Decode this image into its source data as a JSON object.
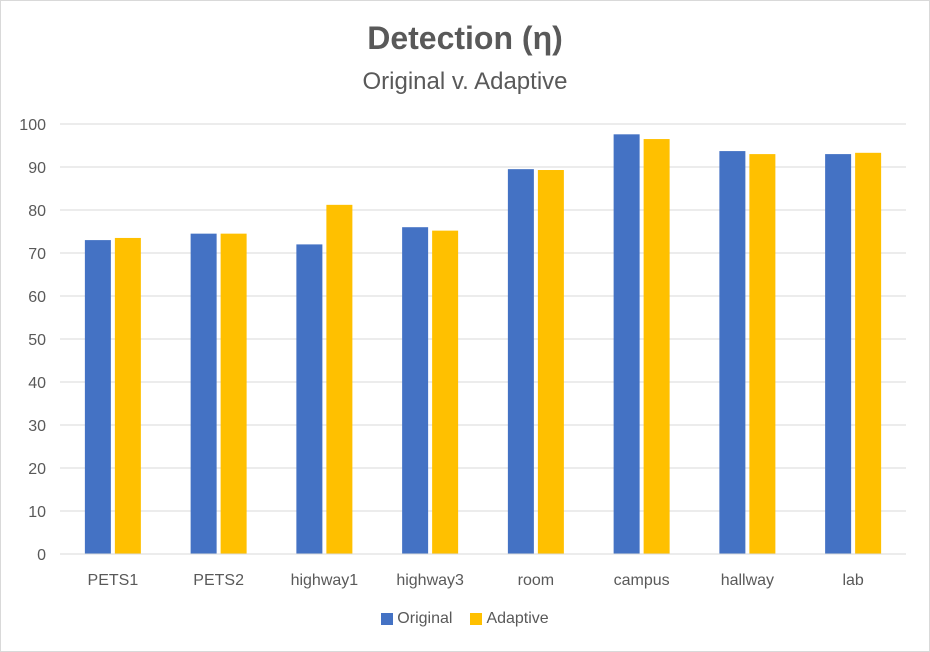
{
  "chart_data": {
    "type": "bar",
    "title": "Detection (η)",
    "subtitle": "Original v. Adaptive",
    "xlabel": "",
    "ylabel": "",
    "ylim": [
      0,
      100
    ],
    "yticks": [
      0,
      10,
      20,
      30,
      40,
      50,
      60,
      70,
      80,
      90,
      100
    ],
    "grid": true,
    "legend_position": "bottom",
    "categories": [
      "PETS1",
      "PETS2",
      "highway1",
      "highway3",
      "room",
      "campus",
      "hallway",
      "lab"
    ],
    "series": [
      {
        "name": "Original",
        "color": "#4472C4",
        "values": [
          73.0,
          74.5,
          72.0,
          76.0,
          89.5,
          97.6,
          93.7,
          93.0
        ]
      },
      {
        "name": "Adaptive",
        "color": "#FFC000",
        "values": [
          73.5,
          74.5,
          81.2,
          75.2,
          89.3,
          96.5,
          93.0,
          93.3
        ]
      }
    ]
  }
}
